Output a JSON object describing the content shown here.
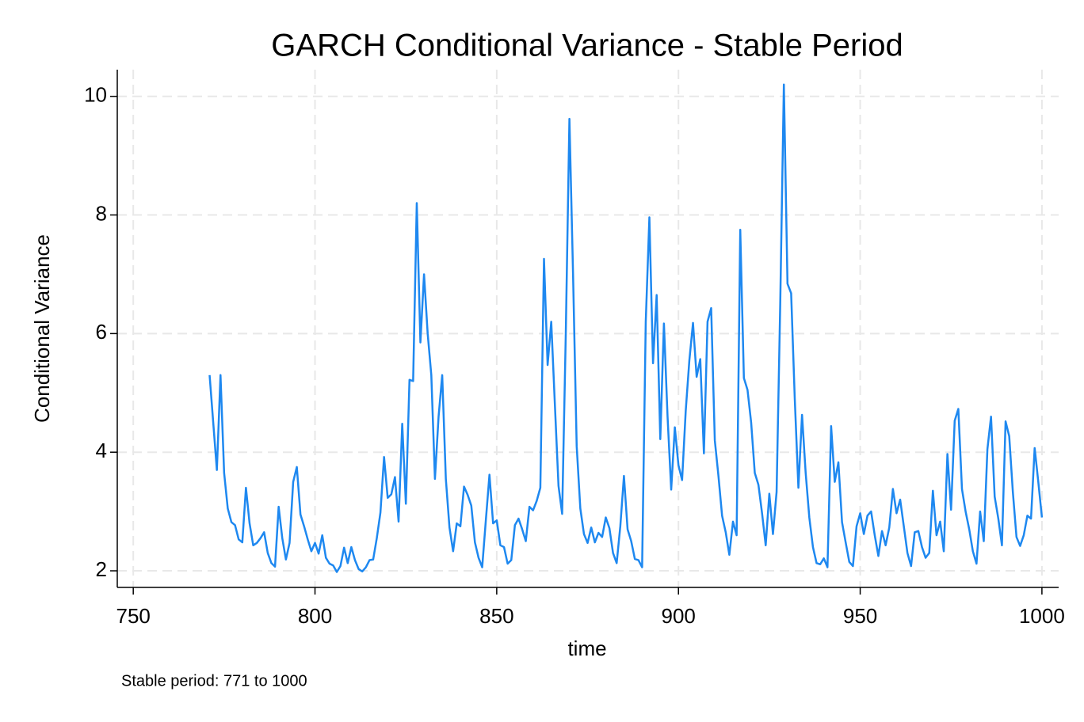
{
  "chart_data": {
    "type": "line",
    "title": "GARCH Conditional Variance - Stable Period",
    "x_label": "time",
    "y_label": "Conditional Variance",
    "note": "Stable period: 771 to 1000",
    "xlim": [
      745.6,
      1004.6
    ],
    "xticks": [
      750,
      800,
      850,
      900,
      950,
      1000
    ],
    "ylim": [
      1.72,
      10.45
    ],
    "yticks": [
      2,
      4,
      6,
      8,
      10
    ],
    "grid": true,
    "x": [
      771,
      772,
      773,
      774,
      775,
      776,
      777,
      778,
      779,
      780,
      781,
      782,
      783,
      784,
      785,
      786,
      787,
      788,
      789,
      790,
      791,
      792,
      793,
      794,
      795,
      796,
      797,
      798,
      799,
      800,
      801,
      802,
      803,
      804,
      805,
      806,
      807,
      808,
      809,
      810,
      811,
      812,
      813,
      814,
      815,
      816,
      817,
      818,
      819,
      820,
      821,
      822,
      823,
      824,
      825,
      826,
      827,
      828,
      829,
      830,
      831,
      832,
      833,
      834,
      835,
      836,
      837,
      838,
      839,
      840,
      841,
      842,
      843,
      844,
      845,
      846,
      847,
      848,
      849,
      850,
      851,
      852,
      853,
      854,
      855,
      856,
      857,
      858,
      859,
      860,
      861,
      862,
      863,
      864,
      865,
      866,
      867,
      868,
      869,
      870,
      871,
      872,
      873,
      874,
      875,
      876,
      877,
      878,
      879,
      880,
      881,
      882,
      883,
      884,
      885,
      886,
      887,
      888,
      889,
      890,
      891,
      892,
      893,
      894,
      895,
      896,
      897,
      898,
      899,
      900,
      901,
      902,
      903,
      904,
      905,
      906,
      907,
      908,
      909,
      910,
      911,
      912,
      913,
      914,
      915,
      916,
      917,
      918,
      919,
      920,
      921,
      922,
      923,
      924,
      925,
      926,
      927,
      928,
      929,
      930,
      931,
      932,
      933,
      934,
      935,
      936,
      937,
      938,
      939,
      940,
      941,
      942,
      943,
      944,
      945,
      946,
      947,
      948,
      949,
      950,
      951,
      952,
      953,
      954,
      955,
      956,
      957,
      958,
      959,
      960,
      961,
      962,
      963,
      964,
      965,
      966,
      967,
      968,
      969,
      970,
      971,
      972,
      973,
      974,
      975,
      976,
      977,
      978,
      979,
      980,
      981,
      982,
      983,
      984,
      985,
      986,
      987,
      988,
      989,
      990,
      991,
      992,
      993,
      994,
      995,
      996,
      997,
      998,
      999,
      1000
    ],
    "series": [
      {
        "name": "Conditional Variance",
        "color": "#1e88f0",
        "values": [
          5.3,
          4.5,
          3.7,
          5.3,
          3.65,
          3.05,
          2.82,
          2.77,
          2.53,
          2.48,
          3.4,
          2.8,
          2.43,
          2.47,
          2.55,
          2.65,
          2.3,
          2.13,
          2.07,
          3.08,
          2.55,
          2.19,
          2.47,
          3.5,
          3.75,
          2.95,
          2.75,
          2.53,
          2.33,
          2.47,
          2.29,
          2.6,
          2.22,
          2.12,
          2.09,
          1.98,
          2.08,
          2.39,
          2.13,
          2.4,
          2.18,
          2.03,
          1.99,
          2.06,
          2.18,
          2.19,
          2.55,
          2.98,
          3.92,
          3.23,
          3.29,
          3.58,
          2.83,
          4.48,
          3.13,
          5.22,
          5.2,
          8.2,
          5.85,
          7.0,
          6.0,
          5.3,
          3.55,
          4.6,
          5.3,
          3.55,
          2.73,
          2.33,
          2.8,
          2.75,
          3.42,
          3.28,
          3.1,
          2.48,
          2.22,
          2.06,
          2.85,
          3.62,
          2.8,
          2.85,
          2.43,
          2.4,
          2.12,
          2.18,
          2.77,
          2.88,
          2.7,
          2.5,
          3.08,
          3.02,
          3.18,
          3.4,
          7.26,
          5.47,
          6.2,
          4.8,
          3.43,
          2.96,
          6.0,
          9.62,
          7.0,
          4.1,
          3.05,
          2.62,
          2.47,
          2.73,
          2.48,
          2.64,
          2.57,
          2.9,
          2.72,
          2.3,
          2.13,
          2.75,
          3.6,
          2.7,
          2.5,
          2.2,
          2.18,
          2.06,
          6.2,
          7.96,
          5.5,
          6.65,
          4.22,
          6.17,
          4.6,
          3.37,
          4.42,
          3.78,
          3.53,
          4.7,
          5.55,
          6.18,
          5.27,
          5.57,
          3.98,
          6.2,
          6.43,
          4.2,
          3.6,
          2.93,
          2.65,
          2.27,
          2.83,
          2.6,
          7.75,
          5.25,
          5.05,
          4.5,
          3.65,
          3.45,
          2.97,
          2.43,
          3.3,
          2.62,
          3.33,
          6.5,
          10.2,
          6.84,
          6.68,
          4.9,
          3.4,
          4.63,
          3.65,
          2.9,
          2.4,
          2.13,
          2.11,
          2.21,
          2.06,
          4.44,
          3.5,
          3.83,
          2.82,
          2.48,
          2.15,
          2.08,
          2.75,
          2.97,
          2.62,
          2.93,
          3.0,
          2.6,
          2.25,
          2.67,
          2.43,
          2.73,
          3.38,
          2.97,
          3.2,
          2.75,
          2.3,
          2.08,
          2.65,
          2.67,
          2.4,
          2.22,
          2.3,
          3.35,
          2.6,
          2.83,
          2.33,
          3.97,
          3.03,
          4.53,
          4.73,
          3.38,
          3.0,
          2.7,
          2.33,
          2.12,
          3.0,
          2.5,
          4.05,
          4.6,
          3.25,
          2.88,
          2.43,
          4.52,
          4.27,
          3.33,
          2.57,
          2.42,
          2.6,
          2.93,
          2.88,
          4.07,
          3.5,
          2.9
        ]
      }
    ]
  }
}
